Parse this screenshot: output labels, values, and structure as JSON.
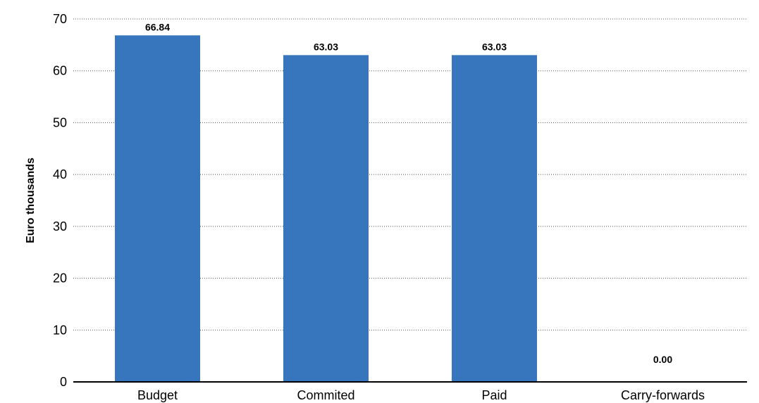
{
  "chart_data": {
    "type": "bar",
    "categories": [
      "Budget",
      "Commited",
      "Paid",
      "Carry-forwards"
    ],
    "values": [
      66.84,
      63.03,
      63.03,
      0.0
    ],
    "data_labels": [
      "66.84",
      "63.03",
      "63.03",
      "0.00"
    ],
    "title": "",
    "xlabel": "",
    "ylabel": "Euro thousands",
    "ylim": [
      0,
      70
    ],
    "yticks": [
      0,
      10,
      20,
      30,
      40,
      50,
      60,
      70
    ],
    "grid": true,
    "legend": "none",
    "bar_color": "#3776BC"
  }
}
